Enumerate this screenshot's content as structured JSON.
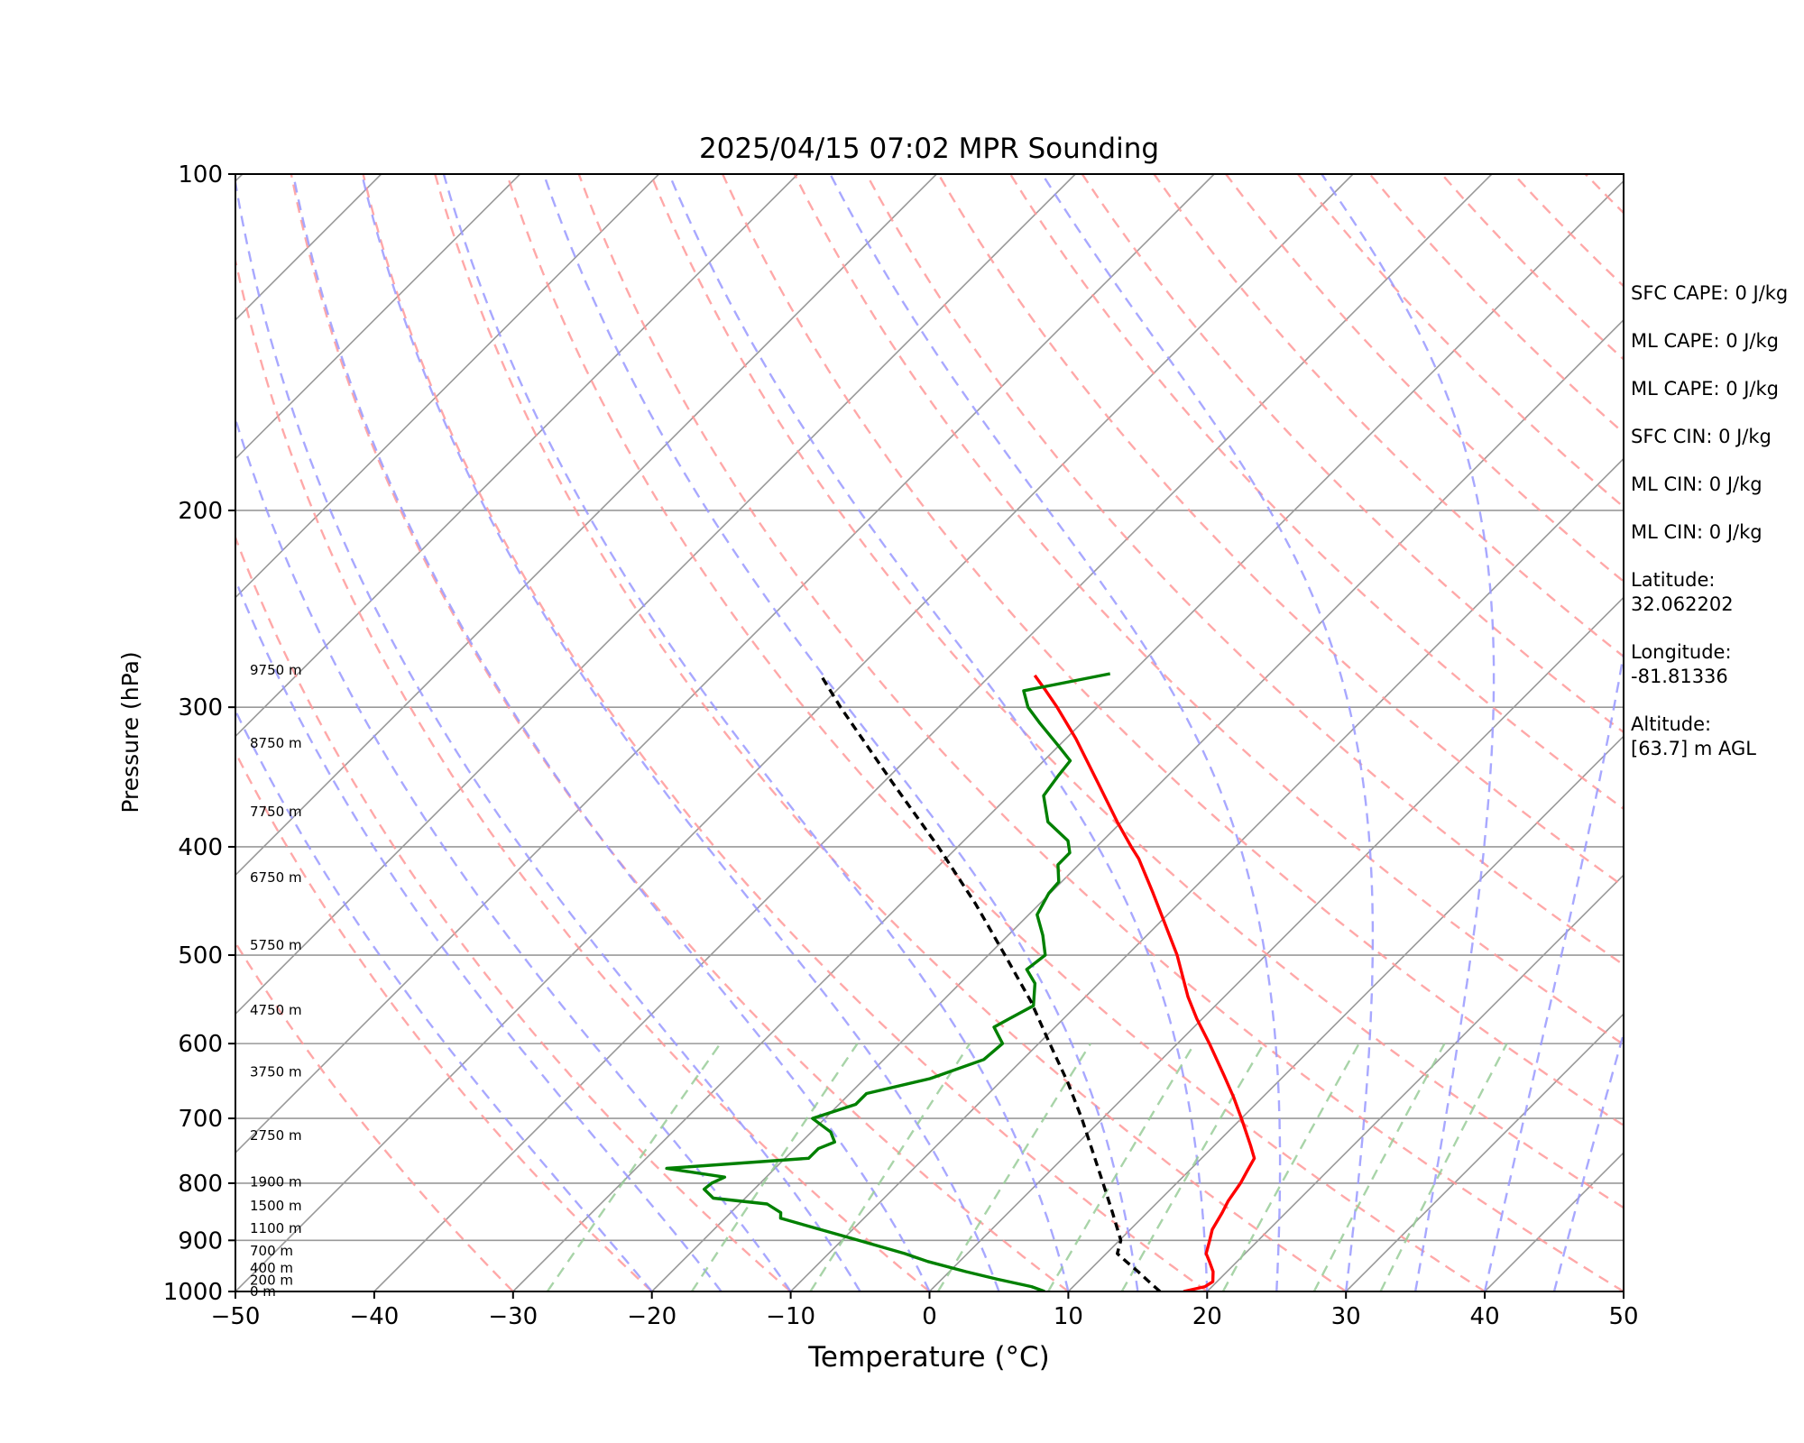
{
  "chart_data": {
    "type": "line",
    "title": "2025/04/15 07:02 MPR Sounding",
    "xlabel": "Temperature (°C)",
    "ylabel": "Pressure (hPa)",
    "xlim": [
      -50,
      50
    ],
    "ylim": [
      1000,
      100
    ],
    "yscale": "log",
    "skew": "skew-T",
    "x_ticks": [
      "−50",
      "−40",
      "−30",
      "−20",
      "−10",
      "0",
      "10",
      "20",
      "30",
      "40",
      "50"
    ],
    "y_ticks": [
      "100",
      "200",
      "300",
      "400",
      "500",
      "600",
      "700",
      "800",
      "900",
      "1000"
    ],
    "grid": true,
    "series": [
      {
        "role": "temperature",
        "color": "#ff0000",
        "points": [
          [
            1000,
            18.3
          ],
          [
            990,
            19.5
          ],
          [
            980,
            19.7
          ],
          [
            960,
            19.0
          ],
          [
            940,
            18.0
          ],
          [
            925,
            17.2
          ],
          [
            900,
            16.5
          ],
          [
            880,
            15.9
          ],
          [
            850,
            15.4
          ],
          [
            830,
            15.0
          ],
          [
            800,
            14.6
          ],
          [
            780,
            14.2
          ],
          [
            760,
            13.8
          ],
          [
            740,
            12.6
          ],
          [
            700,
            10.0
          ],
          [
            670,
            7.9
          ],
          [
            640,
            5.6
          ],
          [
            600,
            2.3
          ],
          [
            570,
            -0.4
          ],
          [
            545,
            -2.6
          ],
          [
            500,
            -6.4
          ],
          [
            470,
            -9.4
          ],
          [
            440,
            -12.6
          ],
          [
            410,
            -16.1
          ],
          [
            400,
            -17.5
          ],
          [
            380,
            -20.3
          ],
          [
            350,
            -24.6
          ],
          [
            320,
            -29.3
          ],
          [
            300,
            -32.9
          ],
          [
            290,
            -34.9
          ],
          [
            281,
            -36.8
          ]
        ]
      },
      {
        "role": "dewpoint",
        "color": "#008000",
        "points": [
          [
            1000,
            8.3
          ],
          [
            990,
            7.0
          ],
          [
            975,
            4.0
          ],
          [
            960,
            1.2
          ],
          [
            940,
            -2.3
          ],
          [
            925,
            -4.5
          ],
          [
            900,
            -8.8
          ],
          [
            860,
            -16.0
          ],
          [
            850,
            -16.4
          ],
          [
            835,
            -18.0
          ],
          [
            825,
            -22.3
          ],
          [
            810,
            -23.6
          ],
          [
            800,
            -23.5
          ],
          [
            790,
            -23.0
          ],
          [
            776,
            -27.8
          ],
          [
            760,
            -18.3
          ],
          [
            745,
            -18.3
          ],
          [
            735,
            -17.6
          ],
          [
            720,
            -18.6
          ],
          [
            700,
            -20.9
          ],
          [
            680,
            -18.8
          ],
          [
            665,
            -18.8
          ],
          [
            645,
            -15.3
          ],
          [
            620,
            -12.8
          ],
          [
            600,
            -12.6
          ],
          [
            580,
            -14.4
          ],
          [
            570,
            -13.9
          ],
          [
            555,
            -13.1
          ],
          [
            530,
            -14.6
          ],
          [
            515,
            -16.2
          ],
          [
            500,
            -15.9
          ],
          [
            480,
            -17.5
          ],
          [
            460,
            -19.4
          ],
          [
            440,
            -20.1
          ],
          [
            430,
            -20.2
          ],
          [
            415,
            -21.5
          ],
          [
            405,
            -21.5
          ],
          [
            395,
            -22.5
          ],
          [
            380,
            -25.3
          ],
          [
            360,
            -27.5
          ],
          [
            345,
            -27.9
          ],
          [
            335,
            -28.1
          ],
          [
            325,
            -30.0
          ],
          [
            310,
            -33.0
          ],
          [
            300,
            -35.0
          ],
          [
            290,
            -36.5
          ],
          [
            280,
            -31.5
          ]
        ]
      },
      {
        "role": "parcel",
        "color": "#000000",
        "style": "dashed",
        "points": [
          [
            1000,
            16.6
          ],
          [
            980,
            15.1
          ],
          [
            960,
            13.6
          ],
          [
            940,
            12.0
          ],
          [
            925,
            10.8
          ],
          [
            900,
            10.1
          ],
          [
            850,
            7.5
          ],
          [
            800,
            4.7
          ],
          [
            750,
            1.7
          ],
          [
            700,
            -1.5
          ],
          [
            650,
            -5.1
          ],
          [
            600,
            -9.2
          ],
          [
            550,
            -13.6
          ],
          [
            500,
            -18.8
          ],
          [
            450,
            -24.6
          ],
          [
            400,
            -31.4
          ],
          [
            350,
            -39.4
          ],
          [
            300,
            -48.5
          ],
          [
            281,
            -52.2
          ]
        ]
      }
    ],
    "height_labels": [
      {
        "p": 1000,
        "text": "0 m"
      },
      {
        "p": 977,
        "text": "200 m"
      },
      {
        "p": 953,
        "text": "400 m"
      },
      {
        "p": 920,
        "text": "700 m"
      },
      {
        "p": 878,
        "text": "1100 m"
      },
      {
        "p": 838,
        "text": "1500 m"
      },
      {
        "p": 798,
        "text": "1900 m"
      },
      {
        "p": 725,
        "text": "2750 m"
      },
      {
        "p": 636,
        "text": "3750 m"
      },
      {
        "p": 560,
        "text": "4750 m"
      },
      {
        "p": 490,
        "text": "5750 m"
      },
      {
        "p": 426,
        "text": "6750 m"
      },
      {
        "p": 372,
        "text": "7750 m"
      },
      {
        "p": 323,
        "text": "8750 m"
      },
      {
        "p": 278,
        "text": "9750 m"
      }
    ]
  },
  "info": {
    "stats": [
      "SFC CAPE: 0 J/kg",
      "ML CAPE: 0 J/kg",
      "ML CAPE: 0 J/kg",
      "SFC CIN: 0 J/kg",
      "ML CIN: 0 J/kg",
      "ML CIN: 0 J/kg"
    ],
    "latitude_label": "Latitude:",
    "latitude_value": "32.062202",
    "longitude_label": "Longitude:",
    "longitude_value": "-81.81336",
    "altitude_label": "Altitude:",
    "altitude_value": "[63.7] m AGL"
  },
  "colors": {
    "dry_adiabats": "#ff9999",
    "moist_adiabats": "#9999ff",
    "mixing_ratio": "#99cc99",
    "isotherms": "#999999",
    "isobars": "#999999"
  }
}
